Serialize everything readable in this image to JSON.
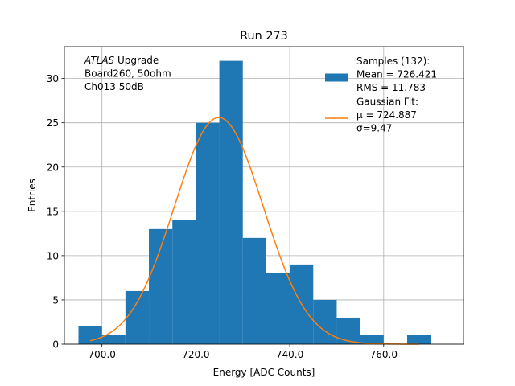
{
  "chart_data": {
    "type": "bar",
    "title": "Run 273",
    "xlabel": "Energy [ADC Counts]",
    "ylabel": "Entries",
    "xlim": [
      692,
      777
    ],
    "ylim": [
      0,
      33.6
    ],
    "grid": true,
    "xticks": [
      {
        "value": 700,
        "label": "700.0"
      },
      {
        "value": 720,
        "label": "720.0"
      },
      {
        "value": 740,
        "label": "740.0"
      },
      {
        "value": 760,
        "label": "760.0"
      }
    ],
    "yticks": [
      {
        "value": 0,
        "label": "0"
      },
      {
        "value": 5,
        "label": "5"
      },
      {
        "value": 10,
        "label": "10"
      },
      {
        "value": 15,
        "label": "15"
      },
      {
        "value": 20,
        "label": "20"
      },
      {
        "value": 25,
        "label": "25"
      },
      {
        "value": 30,
        "label": "30"
      }
    ],
    "histogram": {
      "name": "Samples (132):",
      "color": "#1f77b4",
      "bin_edges": [
        695,
        700,
        705,
        710,
        715,
        720,
        725,
        730,
        735,
        740,
        745,
        750,
        755,
        760,
        765,
        770
      ],
      "counts": [
        2,
        1,
        6,
        13,
        14,
        25,
        32,
        12,
        8,
        9,
        5,
        3,
        1,
        0,
        1
      ]
    },
    "fit": {
      "name": "Gaussian Fit:",
      "color": "#ff7f0e",
      "type": "gaussian",
      "mu": 724.887,
      "sigma": 9.47,
      "amplitude": 25.6,
      "x_range": [
        697.5,
        767.5
      ]
    },
    "legend": {
      "position": "top-right",
      "entries": [
        {
          "lines": [
            "Samples (132):",
            " Mean = 726.421",
            " RMS = 11.783"
          ],
          "marker": "bar",
          "color": "#1f77b4"
        },
        {
          "lines": [
            "Gaussian Fit:",
            " μ = 724.887",
            " σ=9.47"
          ],
          "marker": "line",
          "color": "#ff7f0e"
        }
      ]
    },
    "annotation": {
      "position": "top-left",
      "lines": [
        [
          {
            "text": "ATLAS",
            "italic": true
          },
          {
            "text": " Upgrade",
            "italic": false
          }
        ],
        [
          {
            "text": " Board260, 50ohm",
            "italic": false
          }
        ],
        [
          {
            "text": " Ch013 50dB",
            "italic": false
          }
        ]
      ]
    }
  }
}
